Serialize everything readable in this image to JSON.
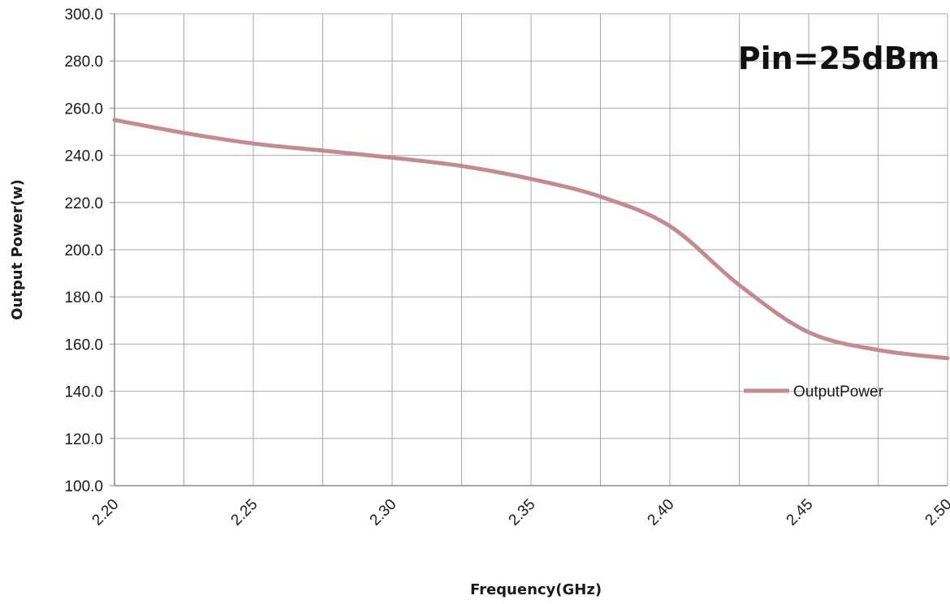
{
  "chart_data": {
    "type": "line",
    "title": "",
    "xlabel": "Frequency(GHz)",
    "ylabel": "Output Power(w)",
    "annotation": "Pin=25dBm",
    "xlim": [
      2.2,
      2.5
    ],
    "ylim": [
      100.0,
      300.0
    ],
    "x_ticks": [
      "2.20",
      "2.25",
      "2.30",
      "2.35",
      "2.40",
      "2.45",
      "2.50"
    ],
    "y_ticks": [
      "100.0",
      "120.0",
      "140.0",
      "160.0",
      "180.0",
      "200.0",
      "220.0",
      "240.0",
      "260.0",
      "280.0",
      "300.0"
    ],
    "grid": true,
    "legend": {
      "position": "right",
      "entries": [
        "OutputPower"
      ]
    },
    "series": [
      {
        "name": "OutputPower",
        "color": "#c48b8e",
        "x": [
          2.2,
          2.225,
          2.25,
          2.275,
          2.3,
          2.325,
          2.35,
          2.375,
          2.4,
          2.425,
          2.45,
          2.475,
          2.5
        ],
        "y": [
          255.0,
          249.5,
          245.0,
          242.0,
          239.0,
          235.5,
          230.0,
          222.5,
          210.0,
          185.0,
          165.0,
          157.5,
          154.0
        ]
      }
    ]
  }
}
